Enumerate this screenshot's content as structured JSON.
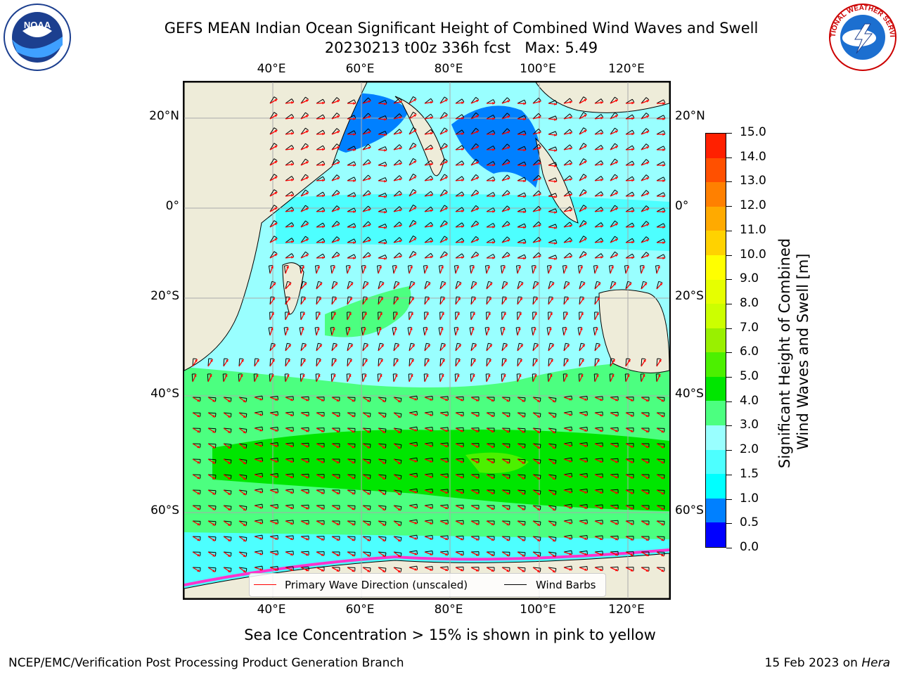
{
  "header": {
    "title_line1": "GEFS MEAN Indian Ocean Significant Height of Combined Wind Waves and Swell",
    "title_line2": "20230213 t00z 336h fcst   Max: 5.49"
  },
  "logos": {
    "left": {
      "text": "NOAA",
      "ring_text": "NATIONAL OCEANIC AND ATMOSPHERIC ADMINISTRATION · U.S. DEPARTMENT OF COMMERCE"
    },
    "right": {
      "ring_text": "NATIONAL WEATHER SERVICE"
    }
  },
  "map": {
    "lon_ticks": [
      "40°E",
      "60°E",
      "80°E",
      "100°E",
      "120°E"
    ],
    "lat_ticks": [
      "20°N",
      "0°",
      "20°S",
      "40°S",
      "60°S"
    ],
    "colors": {
      "land": "#eeecd9",
      "grid": "#aaaaaa",
      "wave_arrow": "#ff0000",
      "wind_barb": "#000000"
    }
  },
  "colorbar": {
    "label_line1": "Significant Height of Combined",
    "label_line2": "Wind Waves and Swell [m]",
    "ticks": [
      "0.0",
      "0.5",
      "1.0",
      "1.5",
      "2.0",
      "3.0",
      "4.0",
      "5.0",
      "6.0",
      "7.0",
      "8.0",
      "9.0",
      "10.0",
      "11.0",
      "12.0",
      "13.0",
      "14.0",
      "15.0"
    ],
    "colors": [
      "#0000ff",
      "#0080ff",
      "#00ffff",
      "#4dffff",
      "#99ffff",
      "#4cff80",
      "#00e600",
      "#4cf000",
      "#99f000",
      "#ccff00",
      "#e6ff00",
      "#ffff00",
      "#ffd200",
      "#ffaa00",
      "#ff8000",
      "#ff5000",
      "#ff2000"
    ]
  },
  "legend": {
    "wave_label": "Primary Wave Direction (unscaled)",
    "wind_label": "Wind Barbs"
  },
  "footer": {
    "caption": "Sea Ice Concentration > 15% is shown in pink to yellow",
    "left_credit": "NCEP/EMC/Verification Post Processing Product Generation Branch",
    "date_text": "15 Feb 2023 on ",
    "machine": "Hera"
  }
}
